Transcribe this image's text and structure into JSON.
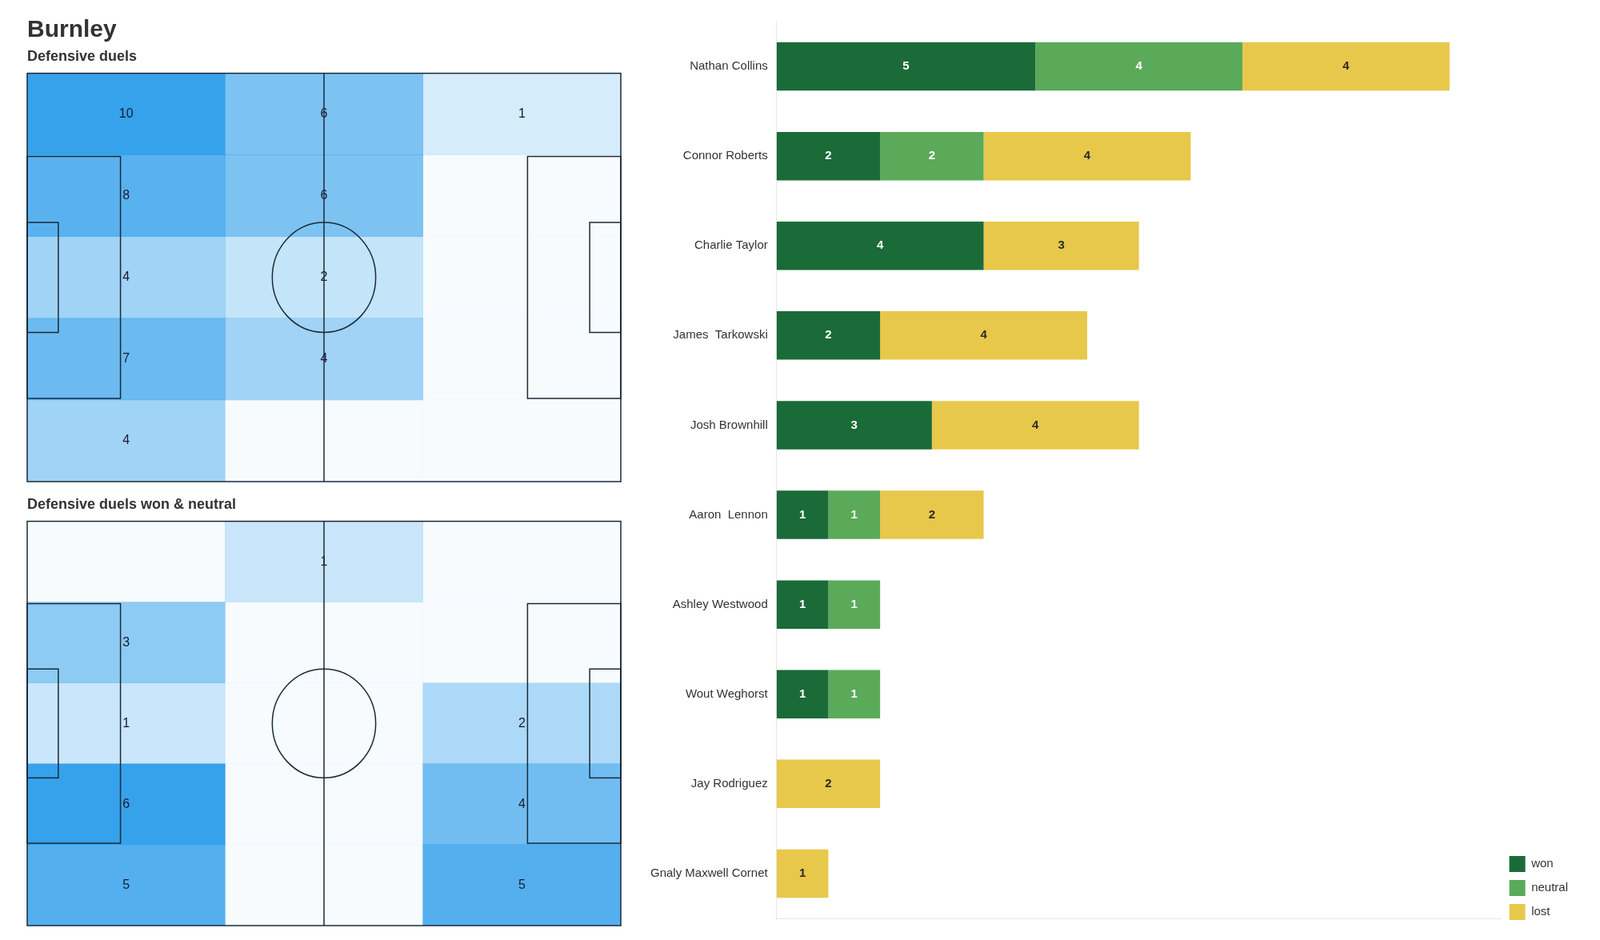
{
  "chart_data": [
    {
      "type": "heatmap",
      "title": "Burnley",
      "subtitle": "Defensive duels",
      "values": [
        [
          10,
          6,
          1
        ],
        [
          8,
          6,
          0
        ],
        [
          4,
          2,
          0
        ],
        [
          7,
          4,
          0
        ],
        [
          4,
          0,
          0
        ]
      ],
      "value_labels": [
        [
          "10",
          "6",
          "1"
        ],
        [
          "8",
          "6",
          null
        ],
        [
          "4",
          "2",
          null
        ],
        [
          "7",
          "4",
          null
        ],
        [
          "4",
          null,
          null
        ]
      ],
      "tick_labels": false
    },
    {
      "type": "heatmap",
      "title": "Defensive duels won & neutral",
      "values": [
        [
          0,
          1,
          0
        ],
        [
          3,
          0,
          0
        ],
        [
          1,
          0,
          2
        ],
        [
          6,
          0,
          4
        ],
        [
          5,
          0,
          5
        ]
      ],
      "value_labels": [
        [
          null,
          "1",
          null
        ],
        [
          "3",
          null,
          null
        ],
        [
          "1",
          null,
          "2"
        ],
        [
          "6",
          null,
          "4"
        ],
        [
          "5",
          null,
          "5"
        ]
      ],
      "tick_labels": false
    },
    {
      "type": "bar",
      "orientation": "horizontal",
      "stacked": true,
      "categories": [
        "Nathan Collins",
        "Connor Roberts",
        "Charlie Taylor",
        "James  Tarkowski",
        "Josh Brownhill",
        "Aaron  Lennon",
        "Ashley Westwood",
        "Wout Weghorst",
        "Jay Rodriguez",
        "Gnaly Maxwell Cornet"
      ],
      "series": [
        {
          "name": "won",
          "color": "#1a6b37",
          "values": [
            5,
            2,
            4,
            2,
            3,
            1,
            1,
            1,
            0,
            0
          ]
        },
        {
          "name": "neutral",
          "color": "#5aaa5a",
          "values": [
            4,
            2,
            0,
            0,
            0,
            1,
            1,
            1,
            0,
            0
          ]
        },
        {
          "name": "lost",
          "color": "#e8c84a",
          "values": [
            4,
            4,
            3,
            4,
            4,
            2,
            0,
            0,
            2,
            1
          ]
        }
      ],
      "xlim": [
        0,
        14
      ],
      "data_labels": true,
      "tick_labels": "y",
      "grid": false,
      "legend": "lower right"
    }
  ]
}
